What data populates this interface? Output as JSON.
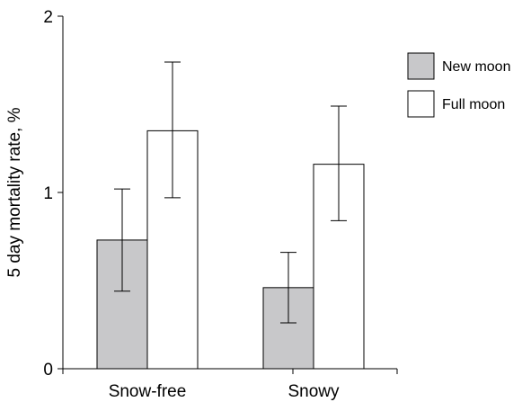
{
  "chart_data": {
    "type": "bar",
    "categories": [
      "Snow-free",
      "Snowy"
    ],
    "series": [
      {
        "name": "New moon",
        "color": "#c8c8ca",
        "values": [
          0.73,
          0.46
        ],
        "error_low": [
          0.44,
          0.26
        ],
        "error_high": [
          1.02,
          0.66
        ]
      },
      {
        "name": "Full moon",
        "color": "#ffffff",
        "values": [
          1.35,
          1.16
        ],
        "error_low": [
          0.97,
          0.84
        ],
        "error_high": [
          1.74,
          1.49
        ]
      }
    ],
    "title": "",
    "xlabel": "",
    "ylabel": "5 day mortality rate, %",
    "ylim": [
      0,
      2
    ],
    "yticks": [
      "0",
      "1",
      "2"
    ],
    "grid": false,
    "legend_position": "top-right"
  }
}
